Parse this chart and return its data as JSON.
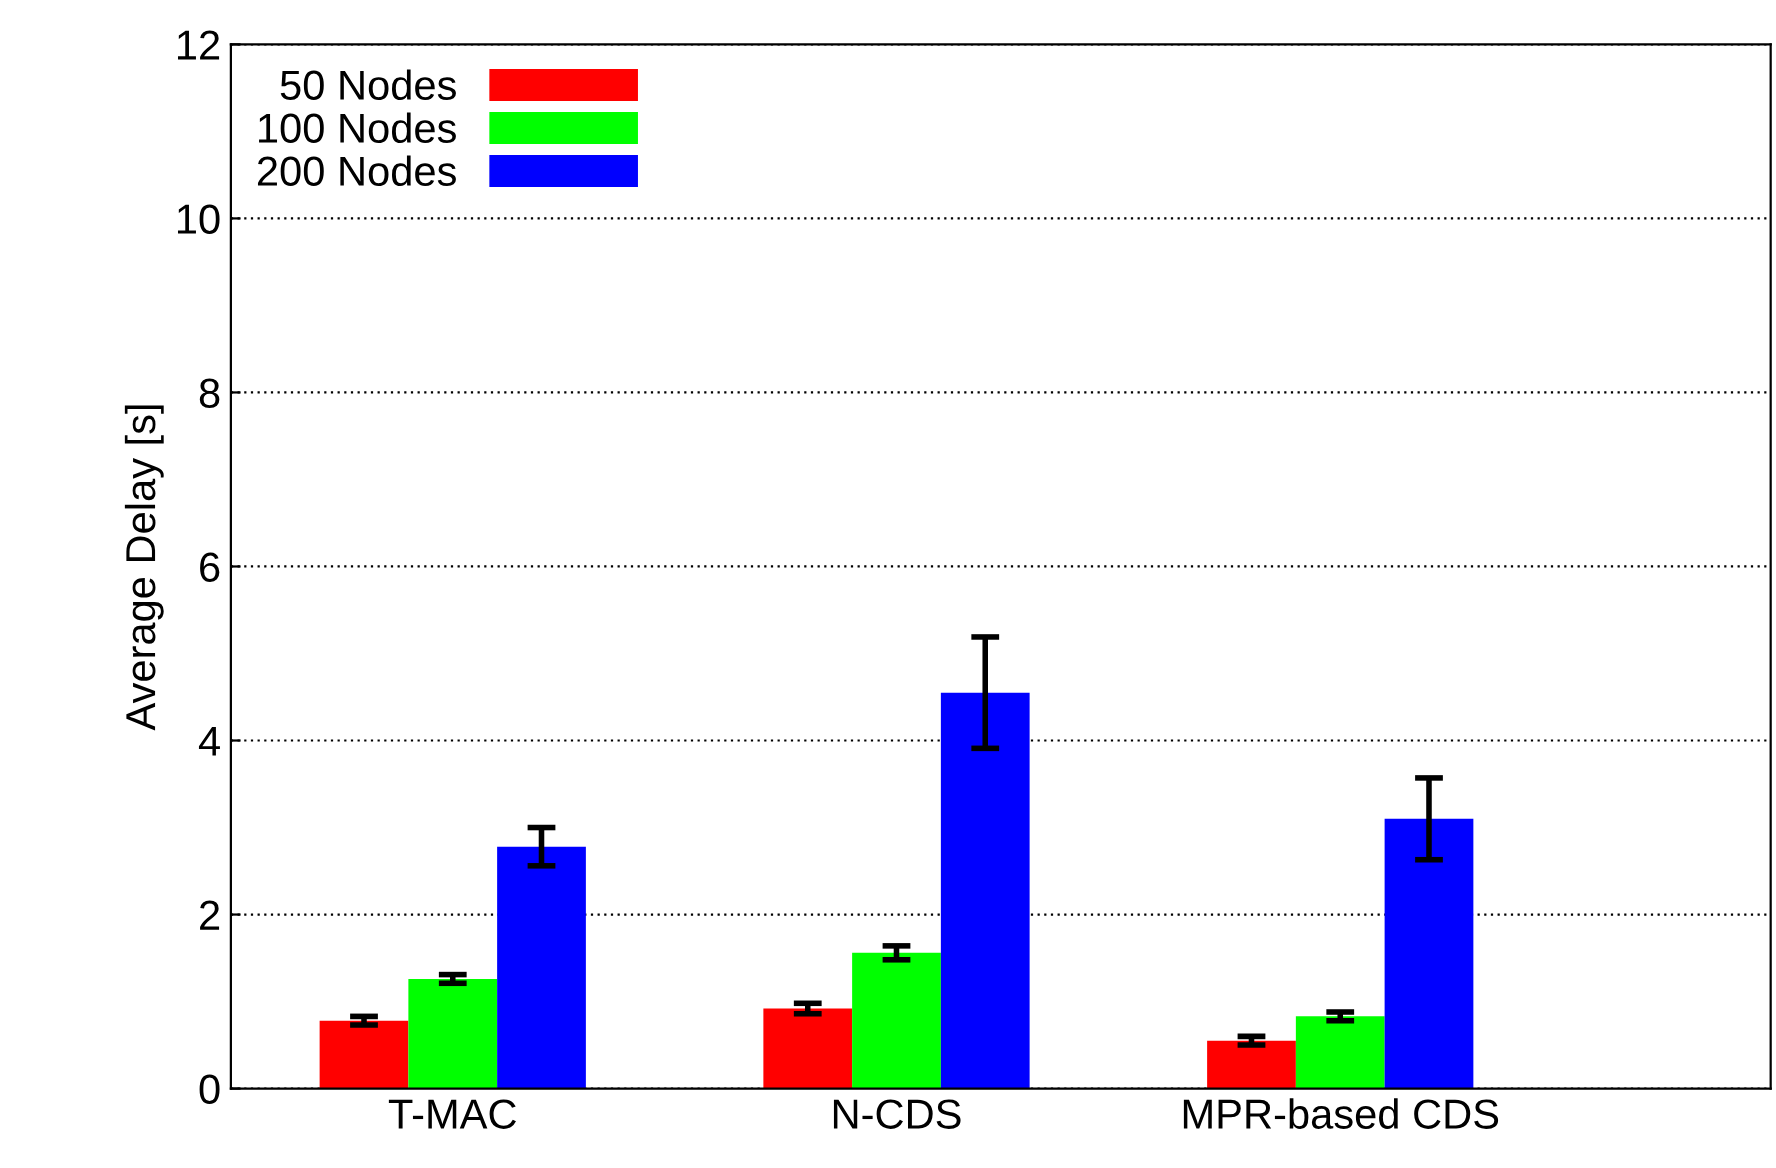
{
  "chart_data": {
    "type": "bar",
    "ylabel": "Average Delay [s]",
    "categories": [
      "T-MAC",
      "N-CDS",
      "MPR-based CDS"
    ],
    "series": [
      {
        "name": "50 Nodes",
        "color": "#ff0000",
        "values": [
          0.78,
          0.92,
          0.55
        ],
        "errors": [
          0.05,
          0.06,
          0.05
        ]
      },
      {
        "name": "100 Nodes",
        "color": "#00ff00",
        "values": [
          1.26,
          1.56,
          0.83
        ],
        "errors": [
          0.05,
          0.08,
          0.05
        ]
      },
      {
        "name": "200 Nodes",
        "color": "#0000ff",
        "values": [
          2.78,
          4.55,
          3.1
        ],
        "errors": [
          0.22,
          0.64,
          0.47
        ]
      }
    ],
    "ylim": [
      0,
      12
    ],
    "yticks": [
      0,
      2,
      4,
      6,
      8,
      10,
      12
    ],
    "grid": "y",
    "legend": "top left"
  }
}
